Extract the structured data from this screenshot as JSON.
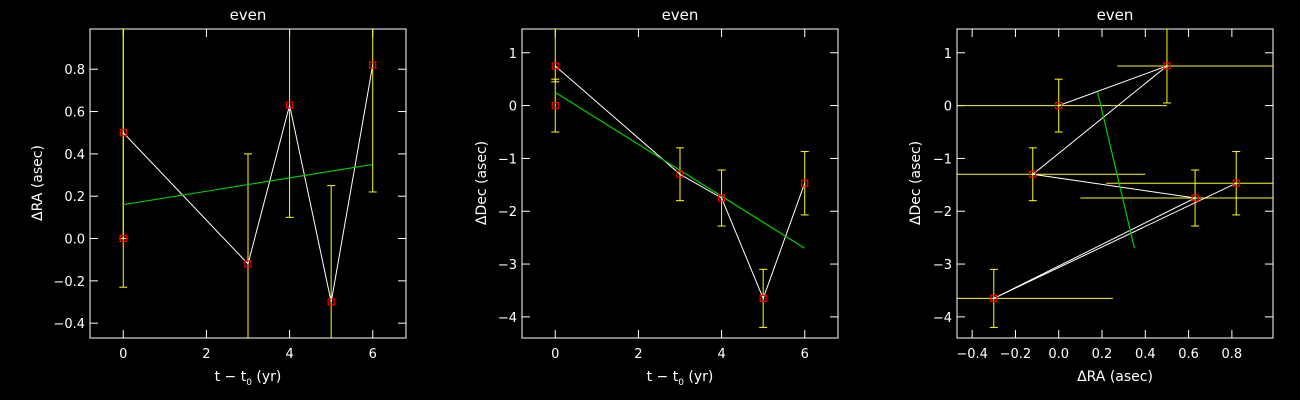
{
  "colors": {
    "background": "#000000",
    "axes": "#ffffff",
    "error_bars": "#ffff00",
    "markers": "#ff0000",
    "connect_line": "#ffffff",
    "fit_line": "#00cc00"
  },
  "chart_data": [
    {
      "type": "scatter",
      "title": "even",
      "xlabel": "t − t",
      "xlabel_sub": "0",
      "xlabel_suffix": " (yr)",
      "ylabel": "ΔRA (asec)",
      "xlim": [
        -0.8,
        6.8
      ],
      "ylim": [
        -0.47,
        0.99
      ],
      "xticks": [
        0,
        2,
        4,
        6
      ],
      "xtick_labels": [
        "0",
        "2",
        "4",
        "6"
      ],
      "yticks": [
        -0.4,
        -0.2,
        0.0,
        0.2,
        0.4,
        0.6,
        0.8
      ],
      "ytick_labels": [
        "−0.4",
        "−0.2",
        "0.0",
        "0.2",
        "0.4",
        "0.6",
        "0.8"
      ],
      "points": [
        {
          "x": 0,
          "y": 0.5,
          "yerr_lo": 0.5,
          "yerr_hi": 0.5
        },
        {
          "x": 0,
          "y": 0.0,
          "yerr_lo": 0.23,
          "yerr_hi": 0.99
        },
        {
          "x": 3,
          "y": -0.12,
          "yerr_lo": 0.52,
          "yerr_hi": 0.52
        },
        {
          "x": 4,
          "y": 0.63,
          "yerr_lo": 0.53,
          "yerr_hi": 0.53
        },
        {
          "x": 5,
          "y": -0.3,
          "yerr_lo": 0.55,
          "yerr_hi": 0.55
        },
        {
          "x": 6,
          "y": 0.82,
          "yerr_lo": 0.6,
          "yerr_hi": 0.6
        }
      ],
      "connect_line": {
        "x": [
          0,
          3,
          4,
          5,
          6
        ],
        "y": [
          0.5,
          -0.12,
          0.63,
          -0.3,
          0.82
        ]
      },
      "fit_line": {
        "x": [
          0,
          6
        ],
        "y": [
          0.16,
          0.35
        ]
      }
    },
    {
      "type": "scatter",
      "title": "even",
      "xlabel": "t − t",
      "xlabel_sub": "0",
      "xlabel_suffix": " (yr)",
      "ylabel": "ΔDec (asec)",
      "xlim": [
        -0.8,
        6.8
      ],
      "ylim": [
        -4.4,
        1.45
      ],
      "xticks": [
        0,
        2,
        4,
        6
      ],
      "xtick_labels": [
        "0",
        "2",
        "4",
        "6"
      ],
      "yticks": [
        -4,
        -3,
        -2,
        -1,
        0,
        1
      ],
      "ytick_labels": [
        "−4",
        "−3",
        "−2",
        "−1",
        "0",
        "1"
      ],
      "points": [
        {
          "x": 0,
          "y": 0.75,
          "yerr_lo": 0.3,
          "yerr_hi": 0.7
        },
        {
          "x": 0,
          "y": 0.0,
          "yerr_lo": 0.5,
          "yerr_hi": 0.5
        },
        {
          "x": 3,
          "y": -1.3,
          "yerr_lo": 0.5,
          "yerr_hi": 0.5
        },
        {
          "x": 4,
          "y": -1.75,
          "yerr_lo": 0.53,
          "yerr_hi": 0.53
        },
        {
          "x": 5,
          "y": -3.65,
          "yerr_lo": 0.55,
          "yerr_hi": 0.55
        },
        {
          "x": 6,
          "y": -1.47,
          "yerr_lo": 0.6,
          "yerr_hi": 0.6
        }
      ],
      "connect_line": {
        "x": [
          0,
          3,
          4,
          5,
          6
        ],
        "y": [
          0.75,
          -1.3,
          -1.75,
          -3.65,
          -1.47
        ]
      },
      "fit_line": {
        "x": [
          0,
          6
        ],
        "y": [
          0.25,
          -2.7
        ]
      }
    },
    {
      "type": "scatter",
      "title": "even",
      "xlabel": "ΔRA (asec)",
      "xlabel_sub": "",
      "xlabel_suffix": "",
      "ylabel": "ΔDec (asec)",
      "xlim": [
        -0.47,
        0.99
      ],
      "ylim": [
        -4.4,
        1.45
      ],
      "xticks": [
        -0.4,
        -0.2,
        0.0,
        0.2,
        0.4,
        0.6,
        0.8
      ],
      "xtick_labels": [
        "−0.4",
        "−0.2",
        "0.0",
        "0.2",
        "0.4",
        "0.6",
        "0.8"
      ],
      "yticks": [
        -4,
        -3,
        -2,
        -1,
        0,
        1
      ],
      "ytick_labels": [
        "−4",
        "−3",
        "−2",
        "−1",
        "0",
        "1"
      ],
      "points": [
        {
          "x": 0.5,
          "y": 0.75,
          "xerr_lo": 0.23,
          "xerr_hi": 0.49,
          "yerr_lo": 0.7,
          "yerr_hi": 0.7
        },
        {
          "x": 0.0,
          "y": 0.0,
          "xerr_lo": 0.47,
          "xerr_hi": 0.5,
          "yerr_lo": 0.5,
          "yerr_hi": 0.5
        },
        {
          "x": -0.12,
          "y": -1.3,
          "xerr_lo": 0.35,
          "xerr_hi": 0.52,
          "yerr_lo": 0.5,
          "yerr_hi": 0.5
        },
        {
          "x": 0.63,
          "y": -1.75,
          "xerr_lo": 0.53,
          "xerr_hi": 0.36,
          "yerr_lo": 0.53,
          "yerr_hi": 0.53
        },
        {
          "x": 0.82,
          "y": -1.47,
          "xerr_lo": 0.6,
          "xerr_hi": 0.17,
          "yerr_lo": 0.6,
          "yerr_hi": 0.6
        },
        {
          "x": -0.3,
          "y": -3.65,
          "xerr_lo": 0.17,
          "xerr_hi": 0.55,
          "yerr_lo": 0.55,
          "yerr_hi": 0.55
        }
      ],
      "connect_line": {
        "x": [
          0.0,
          0.5,
          -0.12,
          0.63,
          -0.3,
          0.82
        ],
        "y": [
          0.0,
          0.75,
          -1.3,
          -1.75,
          -3.65,
          -1.47
        ]
      },
      "fit_line": {
        "x": [
          0.18,
          0.35
        ],
        "y": [
          0.25,
          -2.7
        ]
      }
    }
  ]
}
